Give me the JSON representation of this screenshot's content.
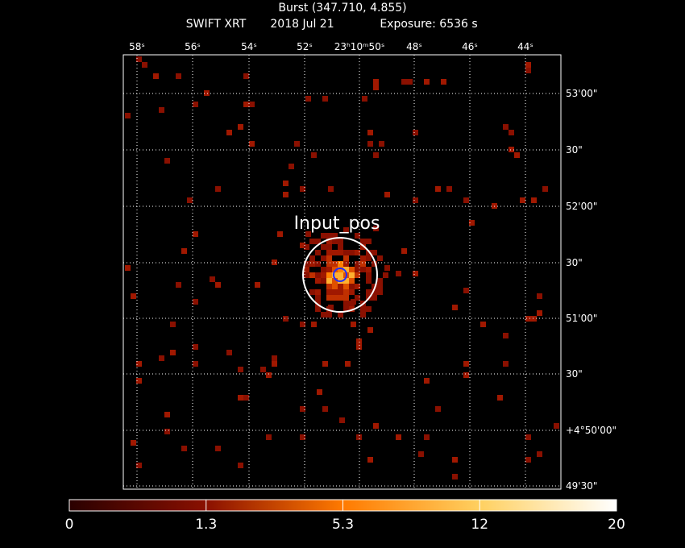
{
  "header": {
    "title": "Burst (347.710, 4.855)",
    "instrument": "SWIFT XRT",
    "date": "2018 Jul 21",
    "exposure": "Exposure: 6536 s"
  },
  "axes": {
    "top_ticks": [
      "58ˢ",
      "56ˢ",
      "54ˢ",
      "52ˢ",
      "23ʰ10ᵐ50ˢ",
      "48ˢ",
      "46ˢ",
      "44ˢ"
    ],
    "right_ticks": [
      "53'00\"",
      "30\"",
      "52'00\"",
      "30\"",
      "51'00\"",
      "30\"",
      "+4°50'00\"",
      "49'30\""
    ]
  },
  "annotation": "Input_pos",
  "colorbar": {
    "ticks": [
      "0",
      "1.3",
      "5.3",
      "12",
      "20"
    ]
  }
}
